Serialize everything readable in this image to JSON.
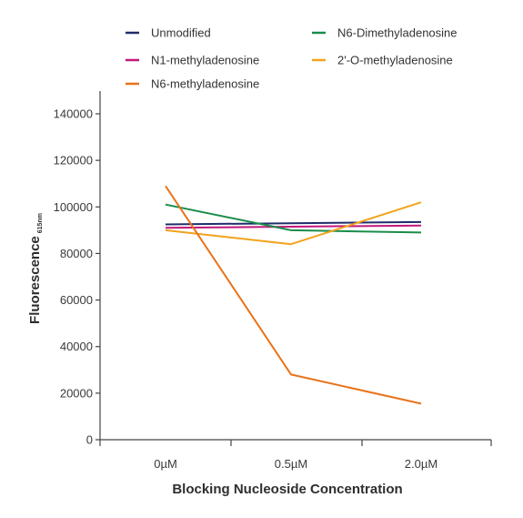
{
  "chart_data": {
    "type": "line",
    "categories": [
      "0µM",
      "0.5µM",
      "2.0µM"
    ],
    "xlabel": "Blocking Nucleoside Concentration",
    "ylabel": "Fluorescence",
    "ylabel_subscript": "615nm",
    "ylim": [
      0,
      140000
    ],
    "yticks": [
      0,
      20000,
      40000,
      60000,
      80000,
      100000,
      120000,
      140000
    ],
    "grid": false,
    "legend_position": "top",
    "series": [
      {
        "name": "Unmodified",
        "color": "#1f2d6b",
        "values": [
          92500,
          93000,
          93500
        ]
      },
      {
        "name": "N6-Dimethyladenosine",
        "color": "#1a8c4a",
        "values": [
          101000,
          90000,
          89000
        ]
      },
      {
        "name": "N1-methyladenosine",
        "color": "#c2187a",
        "values": [
          91000,
          91500,
          92000
        ]
      },
      {
        "name": "2'-O-methyladenosine",
        "color": "#f2a31c",
        "values": [
          90000,
          84000,
          102000
        ]
      },
      {
        "name": "N6-methyladenosine",
        "color": "#e8731a",
        "values": [
          109000,
          28000,
          15500
        ]
      }
    ]
  }
}
